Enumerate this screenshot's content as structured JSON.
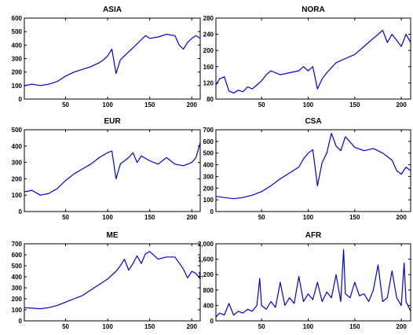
{
  "colors": {
    "line": "#0000e6",
    "axis": "#000000",
    "background": "#ffffff"
  },
  "chart_data": [
    {
      "type": "line",
      "title": "ASIA",
      "xlim": [
        1,
        210
      ],
      "ylim": [
        0,
        600
      ],
      "xticks": [
        50,
        100,
        150,
        200
      ],
      "yticks": [
        0,
        100,
        200,
        300,
        400,
        500,
        600
      ],
      "ytick_labels": [
        "0",
        "100",
        "200",
        "300",
        "400",
        "500",
        "600"
      ],
      "x": [
        1,
        10,
        20,
        30,
        40,
        50,
        60,
        70,
        80,
        90,
        95,
        100,
        105,
        110,
        115,
        120,
        130,
        140,
        145,
        150,
        160,
        170,
        180,
        185,
        190,
        195,
        200,
        205,
        210
      ],
      "y": [
        100,
        110,
        100,
        110,
        130,
        170,
        200,
        220,
        240,
        270,
        290,
        320,
        370,
        190,
        290,
        320,
        380,
        440,
        470,
        450,
        460,
        480,
        470,
        400,
        370,
        420,
        450,
        470,
        450
      ]
    },
    {
      "type": "line",
      "title": "NORA",
      "xlim": [
        1,
        210
      ],
      "ylim": [
        80,
        280
      ],
      "xticks": [
        50,
        100,
        150,
        200
      ],
      "yticks": [
        80,
        120,
        160,
        200,
        240,
        280
      ],
      "ytick_labels": [
        "80",
        "120",
        "160",
        "200",
        "240",
        "280"
      ],
      "x": [
        1,
        5,
        10,
        15,
        20,
        25,
        30,
        35,
        40,
        45,
        50,
        55,
        60,
        70,
        80,
        90,
        95,
        100,
        105,
        110,
        115,
        120,
        130,
        140,
        150,
        160,
        170,
        180,
        185,
        190,
        200,
        205,
        210
      ],
      "y": [
        115,
        130,
        135,
        100,
        95,
        102,
        98,
        110,
        105,
        115,
        125,
        140,
        150,
        140,
        145,
        150,
        160,
        150,
        160,
        105,
        130,
        145,
        170,
        180,
        190,
        210,
        230,
        250,
        220,
        240,
        210,
        240,
        220
      ]
    },
    {
      "type": "line",
      "title": "EUR",
      "xlim": [
        1,
        210
      ],
      "ylim": [
        0,
        500
      ],
      "xticks": [
        50,
        100,
        150,
        200
      ],
      "yticks": [
        0,
        100,
        200,
        300,
        400,
        500
      ],
      "ytick_labels": [
        "0",
        "100",
        "200",
        "300",
        "400",
        "500"
      ],
      "x": [
        1,
        10,
        20,
        30,
        40,
        50,
        60,
        70,
        80,
        90,
        100,
        105,
        110,
        115,
        120,
        125,
        130,
        135,
        140,
        150,
        160,
        170,
        180,
        190,
        200,
        205,
        210
      ],
      "y": [
        120,
        130,
        100,
        110,
        140,
        190,
        230,
        260,
        290,
        330,
        360,
        370,
        200,
        290,
        310,
        330,
        360,
        300,
        340,
        310,
        290,
        330,
        290,
        280,
        300,
        330,
        420
      ]
    },
    {
      "type": "line",
      "title": "CSA",
      "xlim": [
        1,
        210
      ],
      "ylim": [
        0,
        700
      ],
      "xticks": [
        50,
        100,
        150,
        200
      ],
      "yticks": [
        0,
        100,
        200,
        300,
        400,
        500,
        600,
        700
      ],
      "ytick_labels": [
        "0",
        "100",
        "200",
        "300",
        "400",
        "500",
        "600",
        "700"
      ],
      "x": [
        1,
        10,
        20,
        30,
        40,
        50,
        60,
        70,
        80,
        90,
        95,
        100,
        105,
        110,
        115,
        120,
        125,
        130,
        135,
        140,
        150,
        160,
        170,
        180,
        190,
        195,
        200,
        205,
        210
      ],
      "y": [
        130,
        120,
        110,
        120,
        140,
        170,
        220,
        280,
        330,
        380,
        450,
        500,
        530,
        220,
        420,
        500,
        670,
        560,
        520,
        640,
        550,
        520,
        540,
        500,
        440,
        350,
        320,
        380,
        350
      ]
    },
    {
      "type": "line",
      "title": "ME",
      "xlim": [
        1,
        210
      ],
      "ylim": [
        0,
        700
      ],
      "xticks": [
        50,
        100,
        150,
        200
      ],
      "yticks": [
        0,
        100,
        200,
        300,
        400,
        500,
        600,
        700
      ],
      "ytick_labels": [
        "0",
        "100",
        "200",
        "300",
        "400",
        "500",
        "600",
        "700"
      ],
      "x": [
        1,
        10,
        20,
        30,
        40,
        50,
        60,
        70,
        80,
        90,
        100,
        110,
        115,
        120,
        125,
        130,
        135,
        140,
        145,
        150,
        160,
        170,
        180,
        190,
        195,
        200,
        205,
        210
      ],
      "y": [
        120,
        115,
        110,
        120,
        140,
        170,
        200,
        230,
        280,
        330,
        380,
        450,
        500,
        560,
        460,
        520,
        590,
        520,
        610,
        630,
        560,
        580,
        580,
        470,
        390,
        450,
        430,
        380
      ]
    },
    {
      "type": "line",
      "title": "AFR",
      "xlim": [
        1,
        210
      ],
      "ylim": [
        0,
        2000
      ],
      "xticks": [
        50,
        100,
        150,
        200
      ],
      "yticks": [
        0,
        400,
        800,
        1200,
        1600,
        2000
      ],
      "ytick_labels": [
        "0",
        "400",
        "800",
        "1,200",
        "1,600",
        "2,000"
      ],
      "x": [
        1,
        5,
        10,
        15,
        20,
        25,
        30,
        35,
        40,
        45,
        48,
        50,
        55,
        60,
        65,
        70,
        75,
        80,
        85,
        90,
        95,
        100,
        105,
        110,
        115,
        120,
        125,
        130,
        135,
        138,
        140,
        145,
        150,
        155,
        160,
        165,
        170,
        175,
        180,
        185,
        190,
        195,
        200,
        203,
        205,
        210
      ],
      "y": [
        100,
        200,
        150,
        450,
        150,
        250,
        200,
        300,
        250,
        400,
        1100,
        400,
        300,
        500,
        350,
        1000,
        400,
        600,
        450,
        1150,
        500,
        700,
        550,
        1000,
        500,
        750,
        600,
        1200,
        500,
        1850,
        700,
        600,
        1000,
        650,
        700,
        500,
        800,
        1450,
        500,
        600,
        1300,
        600,
        400,
        1500,
        500,
        250
      ]
    }
  ]
}
